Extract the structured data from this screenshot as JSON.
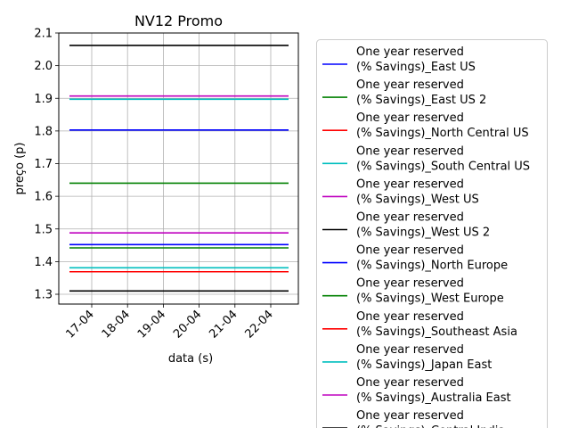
{
  "chart_data": {
    "type": "line",
    "title": "NV12 Promo",
    "xlabel": "data (s)",
    "ylabel": "preço (p)",
    "x_tick_labels": [
      "17-04",
      "18-04",
      "19-04",
      "20-04",
      "21-04",
      "22-04"
    ],
    "x": [
      "16-04",
      "22-04"
    ],
    "ylim": [
      1.27,
      2.1
    ],
    "y_ticks": [
      "1.3",
      "1.4",
      "1.5",
      "1.6",
      "1.7",
      "1.8",
      "1.9",
      "2.0",
      "2.1"
    ],
    "grid": true,
    "legend_position": "right",
    "series": [
      {
        "name": "One year reserved\n(% Savings)_East US",
        "color": "#0000ff",
        "values": [
          1.803,
          1.803
        ]
      },
      {
        "name": "One year reserved\n(% Savings)_East US 2",
        "color": "#008000",
        "values": [
          1.64,
          1.64
        ]
      },
      {
        "name": "One year reserved\n(% Savings)_North Central US",
        "color": "#ff0000",
        "values": [
          1.369,
          1.369
        ]
      },
      {
        "name": "One year reserved\n(% Savings)_South Central US",
        "color": "#00bfbf",
        "values": [
          1.897,
          1.897
        ]
      },
      {
        "name": "One year reserved\n(% Savings)_West US",
        "color": "#bf00bf",
        "values": [
          1.907,
          1.907
        ]
      },
      {
        "name": "One year reserved\n(% Savings)_West US 2",
        "color": "#000000",
        "values": [
          2.062,
          2.062
        ]
      },
      {
        "name": "One year reserved\n(% Savings)_North Europe",
        "color": "#0000ff",
        "values": [
          1.452,
          1.452
        ]
      },
      {
        "name": "One year reserved\n(% Savings)_West Europe",
        "color": "#008000",
        "values": [
          1.442,
          1.442
        ]
      },
      {
        "name": "One year reserved\n(% Savings)_Southeast Asia",
        "color": "#ff0000",
        "values": [
          1.369,
          1.369
        ]
      },
      {
        "name": "One year reserved\n(% Savings)_Japan East",
        "color": "#00bfbf",
        "values": [
          1.381,
          1.381
        ]
      },
      {
        "name": "One year reserved\n(% Savings)_Australia East",
        "color": "#bf00bf",
        "values": [
          1.488,
          1.488
        ]
      },
      {
        "name": "One year reserved\n(% Savings)_Central India",
        "color": "#000000",
        "values": [
          1.31,
          1.31
        ]
      }
    ]
  }
}
